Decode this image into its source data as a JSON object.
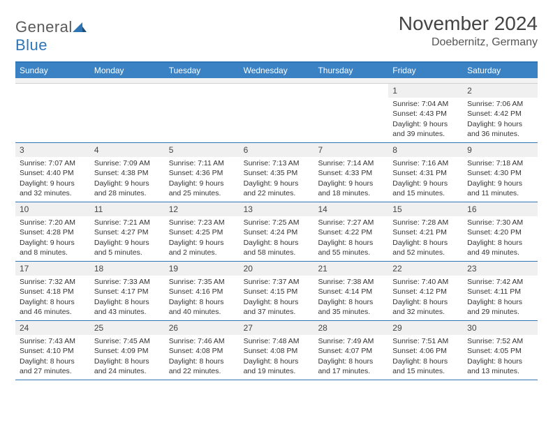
{
  "logo": {
    "text1": "General",
    "text2": "Blue"
  },
  "title": "November 2024",
  "location": "Doebernitz, Germany",
  "colors": {
    "header_bar": "#3b82c4",
    "border": "#2e75b6",
    "daynum_bg": "#f0f0f0",
    "text": "#333333"
  },
  "dow": [
    "Sunday",
    "Monday",
    "Tuesday",
    "Wednesday",
    "Thursday",
    "Friday",
    "Saturday"
  ],
  "weeks": [
    [
      {
        "num": "",
        "sunrise": "",
        "sunset": "",
        "daylight1": "",
        "daylight2": "",
        "empty": true
      },
      {
        "num": "",
        "sunrise": "",
        "sunset": "",
        "daylight1": "",
        "daylight2": "",
        "empty": true
      },
      {
        "num": "",
        "sunrise": "",
        "sunset": "",
        "daylight1": "",
        "daylight2": "",
        "empty": true
      },
      {
        "num": "",
        "sunrise": "",
        "sunset": "",
        "daylight1": "",
        "daylight2": "",
        "empty": true
      },
      {
        "num": "",
        "sunrise": "",
        "sunset": "",
        "daylight1": "",
        "daylight2": "",
        "empty": true
      },
      {
        "num": "1",
        "sunrise": "Sunrise: 7:04 AM",
        "sunset": "Sunset: 4:43 PM",
        "daylight1": "Daylight: 9 hours",
        "daylight2": "and 39 minutes."
      },
      {
        "num": "2",
        "sunrise": "Sunrise: 7:06 AM",
        "sunset": "Sunset: 4:42 PM",
        "daylight1": "Daylight: 9 hours",
        "daylight2": "and 36 minutes."
      }
    ],
    [
      {
        "num": "3",
        "sunrise": "Sunrise: 7:07 AM",
        "sunset": "Sunset: 4:40 PM",
        "daylight1": "Daylight: 9 hours",
        "daylight2": "and 32 minutes."
      },
      {
        "num": "4",
        "sunrise": "Sunrise: 7:09 AM",
        "sunset": "Sunset: 4:38 PM",
        "daylight1": "Daylight: 9 hours",
        "daylight2": "and 28 minutes."
      },
      {
        "num": "5",
        "sunrise": "Sunrise: 7:11 AM",
        "sunset": "Sunset: 4:36 PM",
        "daylight1": "Daylight: 9 hours",
        "daylight2": "and 25 minutes."
      },
      {
        "num": "6",
        "sunrise": "Sunrise: 7:13 AM",
        "sunset": "Sunset: 4:35 PM",
        "daylight1": "Daylight: 9 hours",
        "daylight2": "and 22 minutes."
      },
      {
        "num": "7",
        "sunrise": "Sunrise: 7:14 AM",
        "sunset": "Sunset: 4:33 PM",
        "daylight1": "Daylight: 9 hours",
        "daylight2": "and 18 minutes."
      },
      {
        "num": "8",
        "sunrise": "Sunrise: 7:16 AM",
        "sunset": "Sunset: 4:31 PM",
        "daylight1": "Daylight: 9 hours",
        "daylight2": "and 15 minutes."
      },
      {
        "num": "9",
        "sunrise": "Sunrise: 7:18 AM",
        "sunset": "Sunset: 4:30 PM",
        "daylight1": "Daylight: 9 hours",
        "daylight2": "and 11 minutes."
      }
    ],
    [
      {
        "num": "10",
        "sunrise": "Sunrise: 7:20 AM",
        "sunset": "Sunset: 4:28 PM",
        "daylight1": "Daylight: 9 hours",
        "daylight2": "and 8 minutes."
      },
      {
        "num": "11",
        "sunrise": "Sunrise: 7:21 AM",
        "sunset": "Sunset: 4:27 PM",
        "daylight1": "Daylight: 9 hours",
        "daylight2": "and 5 minutes."
      },
      {
        "num": "12",
        "sunrise": "Sunrise: 7:23 AM",
        "sunset": "Sunset: 4:25 PM",
        "daylight1": "Daylight: 9 hours",
        "daylight2": "and 2 minutes."
      },
      {
        "num": "13",
        "sunrise": "Sunrise: 7:25 AM",
        "sunset": "Sunset: 4:24 PM",
        "daylight1": "Daylight: 8 hours",
        "daylight2": "and 58 minutes."
      },
      {
        "num": "14",
        "sunrise": "Sunrise: 7:27 AM",
        "sunset": "Sunset: 4:22 PM",
        "daylight1": "Daylight: 8 hours",
        "daylight2": "and 55 minutes."
      },
      {
        "num": "15",
        "sunrise": "Sunrise: 7:28 AM",
        "sunset": "Sunset: 4:21 PM",
        "daylight1": "Daylight: 8 hours",
        "daylight2": "and 52 minutes."
      },
      {
        "num": "16",
        "sunrise": "Sunrise: 7:30 AM",
        "sunset": "Sunset: 4:20 PM",
        "daylight1": "Daylight: 8 hours",
        "daylight2": "and 49 minutes."
      }
    ],
    [
      {
        "num": "17",
        "sunrise": "Sunrise: 7:32 AM",
        "sunset": "Sunset: 4:18 PM",
        "daylight1": "Daylight: 8 hours",
        "daylight2": "and 46 minutes."
      },
      {
        "num": "18",
        "sunrise": "Sunrise: 7:33 AM",
        "sunset": "Sunset: 4:17 PM",
        "daylight1": "Daylight: 8 hours",
        "daylight2": "and 43 minutes."
      },
      {
        "num": "19",
        "sunrise": "Sunrise: 7:35 AM",
        "sunset": "Sunset: 4:16 PM",
        "daylight1": "Daylight: 8 hours",
        "daylight2": "and 40 minutes."
      },
      {
        "num": "20",
        "sunrise": "Sunrise: 7:37 AM",
        "sunset": "Sunset: 4:15 PM",
        "daylight1": "Daylight: 8 hours",
        "daylight2": "and 37 minutes."
      },
      {
        "num": "21",
        "sunrise": "Sunrise: 7:38 AM",
        "sunset": "Sunset: 4:14 PM",
        "daylight1": "Daylight: 8 hours",
        "daylight2": "and 35 minutes."
      },
      {
        "num": "22",
        "sunrise": "Sunrise: 7:40 AM",
        "sunset": "Sunset: 4:12 PM",
        "daylight1": "Daylight: 8 hours",
        "daylight2": "and 32 minutes."
      },
      {
        "num": "23",
        "sunrise": "Sunrise: 7:42 AM",
        "sunset": "Sunset: 4:11 PM",
        "daylight1": "Daylight: 8 hours",
        "daylight2": "and 29 minutes."
      }
    ],
    [
      {
        "num": "24",
        "sunrise": "Sunrise: 7:43 AM",
        "sunset": "Sunset: 4:10 PM",
        "daylight1": "Daylight: 8 hours",
        "daylight2": "and 27 minutes."
      },
      {
        "num": "25",
        "sunrise": "Sunrise: 7:45 AM",
        "sunset": "Sunset: 4:09 PM",
        "daylight1": "Daylight: 8 hours",
        "daylight2": "and 24 minutes."
      },
      {
        "num": "26",
        "sunrise": "Sunrise: 7:46 AM",
        "sunset": "Sunset: 4:08 PM",
        "daylight1": "Daylight: 8 hours",
        "daylight2": "and 22 minutes."
      },
      {
        "num": "27",
        "sunrise": "Sunrise: 7:48 AM",
        "sunset": "Sunset: 4:08 PM",
        "daylight1": "Daylight: 8 hours",
        "daylight2": "and 19 minutes."
      },
      {
        "num": "28",
        "sunrise": "Sunrise: 7:49 AM",
        "sunset": "Sunset: 4:07 PM",
        "daylight1": "Daylight: 8 hours",
        "daylight2": "and 17 minutes."
      },
      {
        "num": "29",
        "sunrise": "Sunrise: 7:51 AM",
        "sunset": "Sunset: 4:06 PM",
        "daylight1": "Daylight: 8 hours",
        "daylight2": "and 15 minutes."
      },
      {
        "num": "30",
        "sunrise": "Sunrise: 7:52 AM",
        "sunset": "Sunset: 4:05 PM",
        "daylight1": "Daylight: 8 hours",
        "daylight2": "and 13 minutes."
      }
    ]
  ]
}
